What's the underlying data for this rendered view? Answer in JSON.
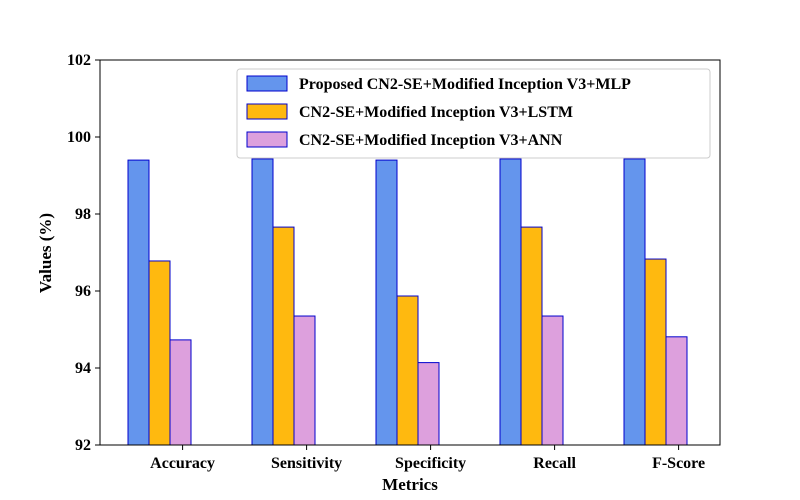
{
  "chart_data": {
    "type": "bar",
    "categories": [
      "Accuracy",
      "Sensitivity",
      "Specificity",
      "Recall",
      "F-Score"
    ],
    "series": [
      {
        "name": "Proposed CN2-SE+Modified Inception V3+MLP",
        "color": "#6495ed",
        "values": [
          99.4,
          99.43,
          99.4,
          99.43,
          99.43
        ]
      },
      {
        "name": "CN2-SE+Modified Inception V3+LSTM",
        "color": "#ffb90f",
        "values": [
          96.78,
          97.66,
          95.87,
          97.66,
          96.83
        ]
      },
      {
        "name": "CN2-SE+Modified Inception V3+ANN",
        "color": "#dda0dd",
        "values": [
          94.73,
          95.35,
          94.14,
          95.35,
          94.81
        ]
      }
    ],
    "bar_edge_color": "#0000cd",
    "xlabel": "Metrics",
    "ylabel": "Values (%)",
    "ylim": [
      92,
      102
    ],
    "yticks": [
      92,
      94,
      96,
      98,
      100,
      102
    ],
    "grid": false,
    "legend_position": "top-right"
  }
}
